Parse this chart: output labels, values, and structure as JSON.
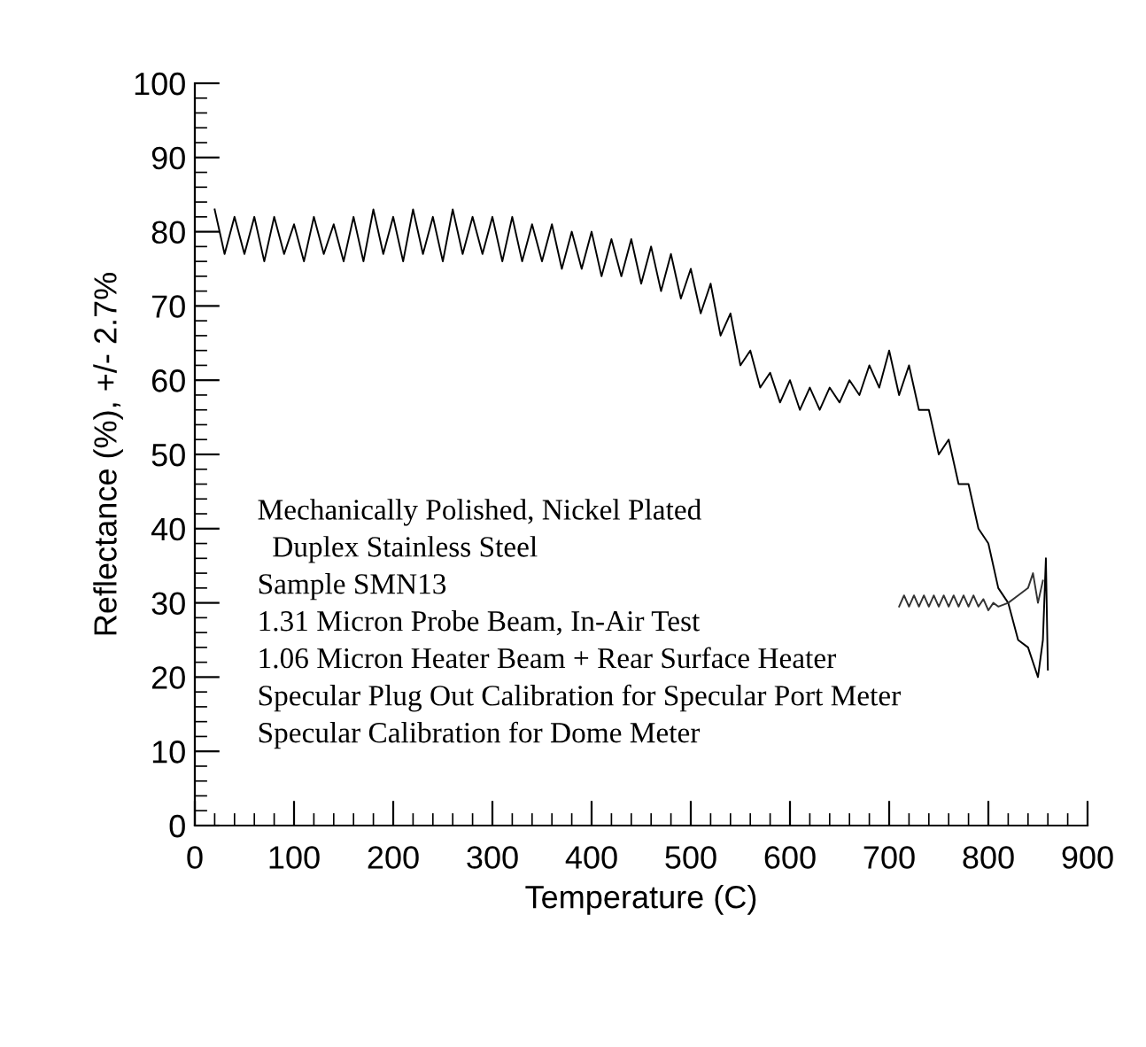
{
  "chart_data": {
    "type": "line",
    "xlabel": "Temperature (C)",
    "ylabel": "Reflectance (%), +/- 2.7%",
    "xlim": [
      0,
      900
    ],
    "ylim": [
      0,
      100
    ],
    "xticks": [
      0,
      100,
      200,
      300,
      400,
      500,
      600,
      700,
      800,
      900,
      {
        "value": 20,
        "label": null
      },
      {
        "value": 40,
        "label": null
      },
      {
        "value": 60,
        "label": null
      },
      {
        "value": 80,
        "label": null
      },
      {
        "value": 120,
        "label": null
      },
      {
        "value": 140,
        "label": null
      },
      {
        "value": 160,
        "label": null
      },
      {
        "value": 180,
        "label": null
      },
      {
        "value": 220,
        "label": null
      },
      {
        "value": 240,
        "label": null
      },
      {
        "value": 260,
        "label": null
      },
      {
        "value": 280,
        "label": null
      },
      {
        "value": 320,
        "label": null
      },
      {
        "value": 340,
        "label": null
      },
      {
        "value": 360,
        "label": null
      },
      {
        "value": 380,
        "label": null
      },
      {
        "value": 420,
        "label": null
      },
      {
        "value": 440,
        "label": null
      },
      {
        "value": 460,
        "label": null
      },
      {
        "value": 480,
        "label": null
      },
      {
        "value": 520,
        "label": null
      },
      {
        "value": 540,
        "label": null
      },
      {
        "value": 560,
        "label": null
      },
      {
        "value": 580,
        "label": null
      },
      {
        "value": 620,
        "label": null
      },
      {
        "value": 640,
        "label": null
      },
      {
        "value": 660,
        "label": null
      },
      {
        "value": 680,
        "label": null
      },
      {
        "value": 720,
        "label": null
      },
      {
        "value": 740,
        "label": null
      },
      {
        "value": 760,
        "label": null
      },
      {
        "value": 780,
        "label": null
      },
      {
        "value": 820,
        "label": null
      },
      {
        "value": 840,
        "label": null
      },
      {
        "value": 860,
        "label": null
      },
      {
        "value": 880,
        "label": null
      }
    ],
    "yticks": [
      0,
      10,
      20,
      30,
      40,
      50,
      60,
      70,
      80,
      90,
      100,
      {
        "value": 2,
        "label": null
      },
      {
        "value": 4,
        "label": null
      },
      {
        "value": 6,
        "label": null
      },
      {
        "value": 8,
        "label": null
      },
      {
        "value": 12,
        "label": null
      },
      {
        "value": 14,
        "label": null
      },
      {
        "value": 16,
        "label": null
      },
      {
        "value": 18,
        "label": null
      },
      {
        "value": 22,
        "label": null
      },
      {
        "value": 24,
        "label": null
      },
      {
        "value": 26,
        "label": null
      },
      {
        "value": 28,
        "label": null
      },
      {
        "value": 32,
        "label": null
      },
      {
        "value": 34,
        "label": null
      },
      {
        "value": 36,
        "label": null
      },
      {
        "value": 38,
        "label": null
      },
      {
        "value": 42,
        "label": null
      },
      {
        "value": 44,
        "label": null
      },
      {
        "value": 46,
        "label": null
      },
      {
        "value": 48,
        "label": null
      },
      {
        "value": 52,
        "label": null
      },
      {
        "value": 54,
        "label": null
      },
      {
        "value": 56,
        "label": null
      },
      {
        "value": 58,
        "label": null
      },
      {
        "value": 62,
        "label": null
      },
      {
        "value": 64,
        "label": null
      },
      {
        "value": 66,
        "label": null
      },
      {
        "value": 68,
        "label": null
      },
      {
        "value": 72,
        "label": null
      },
      {
        "value": 74,
        "label": null
      },
      {
        "value": 76,
        "label": null
      },
      {
        "value": 78,
        "label": null
      },
      {
        "value": 82,
        "label": null
      },
      {
        "value": 84,
        "label": null
      },
      {
        "value": 86,
        "label": null
      },
      {
        "value": 88,
        "label": null
      },
      {
        "value": 92,
        "label": null
      },
      {
        "value": 94,
        "label": null
      },
      {
        "value": 96,
        "label": null
      },
      {
        "value": 98,
        "label": null
      }
    ],
    "grid": false,
    "legend": false,
    "marker": "none",
    "line_style": "solid",
    "annotations": [
      "Mechanically Polished, Nickel Plated",
      "  Duplex Stainless Steel",
      "Sample SMN13",
      "1.31 Micron Probe Beam, In-Air Test",
      "1.06 Micron Heater Beam + Rear Surface Heater",
      "Specular Plug Out Calibration for Specular Port Meter",
      "Specular Calibration for Dome Meter"
    ],
    "series": [
      {
        "color": "#000000",
        "x": [
          20,
          30,
          40,
          50,
          60,
          70,
          80,
          90,
          100,
          110,
          120,
          130,
          140,
          150,
          160,
          170,
          180,
          190,
          200,
          210,
          220,
          230,
          240,
          250,
          260,
          270,
          280,
          290,
          300,
          310,
          320,
          330,
          340,
          350,
          360,
          370,
          380,
          390,
          400,
          410,
          420,
          430,
          440,
          450,
          460,
          470,
          480,
          490,
          500,
          510,
          520,
          530,
          540,
          550,
          560,
          570,
          580,
          590,
          600,
          610,
          620,
          630,
          640,
          650,
          660,
          670,
          680,
          690,
          700,
          710,
          720,
          730,
          740,
          750,
          760,
          770,
          780,
          790,
          800,
          810,
          820,
          830,
          840,
          850,
          855,
          858,
          860
        ],
        "values": [
          83,
          77,
          82,
          77,
          82,
          76,
          82,
          77,
          81,
          76,
          82,
          77,
          81,
          76,
          82,
          76,
          83,
          77,
          82,
          76,
          83,
          77,
          82,
          76,
          83,
          77,
          82,
          77,
          82,
          76,
          82,
          76,
          81,
          76,
          81,
          75,
          80,
          75,
          80,
          74,
          79,
          74,
          79,
          73,
          78,
          72,
          77,
          71,
          75,
          69,
          73,
          66,
          69,
          62,
          64,
          59,
          61,
          57,
          60,
          56,
          59,
          56,
          59,
          57,
          60,
          58,
          62,
          59,
          64,
          58,
          62,
          56,
          56,
          50,
          52,
          46,
          46,
          40,
          38,
          32,
          30,
          25,
          24,
          20,
          25,
          36,
          21
        ]
      },
      {
        "color": "#333333",
        "x": [
          710,
          715,
          720,
          725,
          730,
          735,
          740,
          745,
          750,
          755,
          760,
          765,
          770,
          775,
          780,
          785,
          790,
          795,
          800,
          805,
          810,
          820,
          830,
          840,
          845,
          850,
          855
        ],
        "values": [
          29.5,
          31,
          29.5,
          31,
          29.5,
          31,
          29.5,
          31,
          29.5,
          31,
          29.5,
          31,
          29.5,
          31,
          29.5,
          31,
          29.5,
          30.5,
          29,
          30,
          29.5,
          30,
          31,
          32,
          34,
          30,
          33
        ]
      }
    ]
  }
}
